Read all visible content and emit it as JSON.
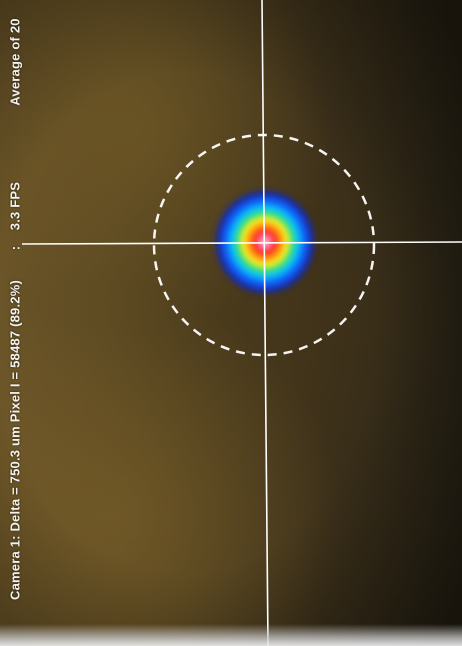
{
  "status": {
    "average": "Average of 20",
    "separator": ":",
    "fps": "3.3 FPS",
    "camera_info": "Camera 1: Delta = 750.3 um Pixel I = 58487 (89.2%)"
  },
  "colors": {
    "crosshair": "#ffffff",
    "aperture_circle": "#ffffff",
    "beam_core": "#ff80b0",
    "beam_mid": "#ff2a1a",
    "beam_outer": "#2b6cff"
  }
}
